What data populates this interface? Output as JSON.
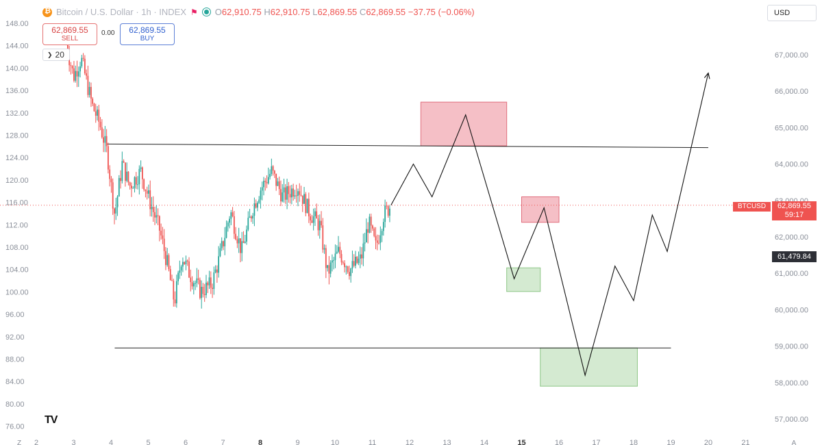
{
  "header": {
    "symbol_name": "Bitcoin / U.S. Dollar · 1h · INDEX",
    "o_label": "O",
    "o_value": "62,910.75",
    "h_label": "H",
    "h_value": "62,910.75",
    "l_label": "L",
    "l_value": "62,869.55",
    "c_label": "C",
    "c_value": "62,869.55",
    "change": "−37.75 (−0.06%)",
    "icons": [
      "bitcoin-logo-icon",
      "flag-icon",
      "market-status-dot-icon"
    ]
  },
  "trade": {
    "sell_price": "62,869.55",
    "sell_label": "SELL",
    "spread": "0.00",
    "buy_price": "62,869.55",
    "buy_label": "BUY"
  },
  "volume_toggle": {
    "value": "20",
    "icon": "chevron-down-icon"
  },
  "currency_button": "USD",
  "price_tag": {
    "symbol": "BTCUSD",
    "price": "62,869.55",
    "countdown": "59:17"
  },
  "crosshair_tag": "61,479.84",
  "logo": "TV",
  "colors": {
    "up": "#26a69a",
    "down": "#ef5350",
    "supply_zone": "#f4b8c0",
    "demand_zone": "#cfe8cc",
    "projection": "#111111"
  },
  "chart_data": {
    "type": "candlestick",
    "title": "Bitcoin / U.S. Dollar · 1h · INDEX",
    "left_axis": {
      "ticks": [
        "148.00",
        "144.00",
        "140.00",
        "136.00",
        "132.00",
        "128.00",
        "124.00",
        "120.00",
        "116.00",
        "112.00",
        "108.00",
        "104.00",
        "100.00",
        "96.00",
        "92.00",
        "88.00",
        "84.00",
        "80.00",
        "76.00"
      ]
    },
    "right_axis": {
      "ticks": [
        "67,000.00",
        "66,000.00",
        "65,000.00",
        "64,000.00",
        "63,000.00",
        "62,000.00",
        "61,000.00",
        "60,000.00",
        "59,000.00",
        "58,000.00",
        "57,000.00"
      ],
      "ylim": [
        56800,
        67600
      ]
    },
    "x_axis": {
      "ticks": [
        "2",
        "3",
        "4",
        "5",
        "6",
        "7",
        "8",
        "9",
        "10",
        "11",
        "12",
        "13",
        "14",
        "15",
        "16",
        "17",
        "18",
        "19",
        "20",
        "21"
      ],
      "bold": [
        "8",
        "15"
      ],
      "corner_left": "Z",
      "corner_right": "A"
    },
    "price_path": [
      [
        2.8,
        67300
      ],
      [
        3.0,
        66400
      ],
      [
        3.2,
        66900
      ],
      [
        3.5,
        65600
      ],
      [
        3.7,
        65100
      ],
      [
        3.9,
        64300
      ],
      [
        4.1,
        62600
      ],
      [
        4.3,
        64000
      ],
      [
        4.5,
        63400
      ],
      [
        4.8,
        63800
      ],
      [
        5.0,
        63100
      ],
      [
        5.3,
        62200
      ],
      [
        5.5,
        61300
      ],
      [
        5.7,
        60200
      ],
      [
        5.9,
        61500
      ],
      [
        6.1,
        61000
      ],
      [
        6.4,
        60500
      ],
      [
        6.7,
        60700
      ],
      [
        6.9,
        61400
      ],
      [
        7.2,
        62700
      ],
      [
        7.5,
        61600
      ],
      [
        7.8,
        62800
      ],
      [
        8.0,
        63300
      ],
      [
        8.3,
        63800
      ],
      [
        8.6,
        63100
      ],
      [
        9.0,
        63400
      ],
      [
        9.3,
        62700
      ],
      [
        9.6,
        62300
      ],
      [
        9.8,
        61000
      ],
      [
        10.1,
        61600
      ],
      [
        10.4,
        61100
      ],
      [
        10.7,
        61400
      ],
      [
        10.9,
        62400
      ],
      [
        11.1,
        61700
      ],
      [
        11.3,
        62600
      ],
      [
        11.5,
        62870
      ]
    ],
    "horizontal_lines": [
      {
        "from_x": 3.9,
        "to_x": 20.0,
        "from_y": 64550,
        "to_y": 64450
      },
      {
        "from_x": 4.1,
        "to_x": 19.0,
        "y": 58950
      }
    ],
    "current_price_line": 62869.55,
    "zones": [
      {
        "kind": "supply",
        "x": [
          12.3,
          14.6
        ],
        "y": [
          64500,
          65700
        ]
      },
      {
        "kind": "supply",
        "x": [
          15.0,
          16.0
        ],
        "y": [
          62400,
          63100
        ]
      },
      {
        "kind": "demand",
        "x": [
          14.6,
          15.5
        ],
        "y": [
          60500,
          61150
        ]
      },
      {
        "kind": "demand",
        "x": [
          15.5,
          18.1
        ],
        "y": [
          57900,
          58950
        ]
      }
    ],
    "projection_path": [
      [
        11.5,
        62870
      ],
      [
        12.1,
        64000
      ],
      [
        12.6,
        63100
      ],
      [
        13.5,
        65350
      ],
      [
        14.8,
        60850
      ],
      [
        15.6,
        62800
      ],
      [
        16.7,
        58200
      ],
      [
        17.5,
        61200
      ],
      [
        18.0,
        60250
      ],
      [
        18.5,
        62600
      ],
      [
        18.9,
        61600
      ],
      [
        20.0,
        66500
      ]
    ]
  }
}
